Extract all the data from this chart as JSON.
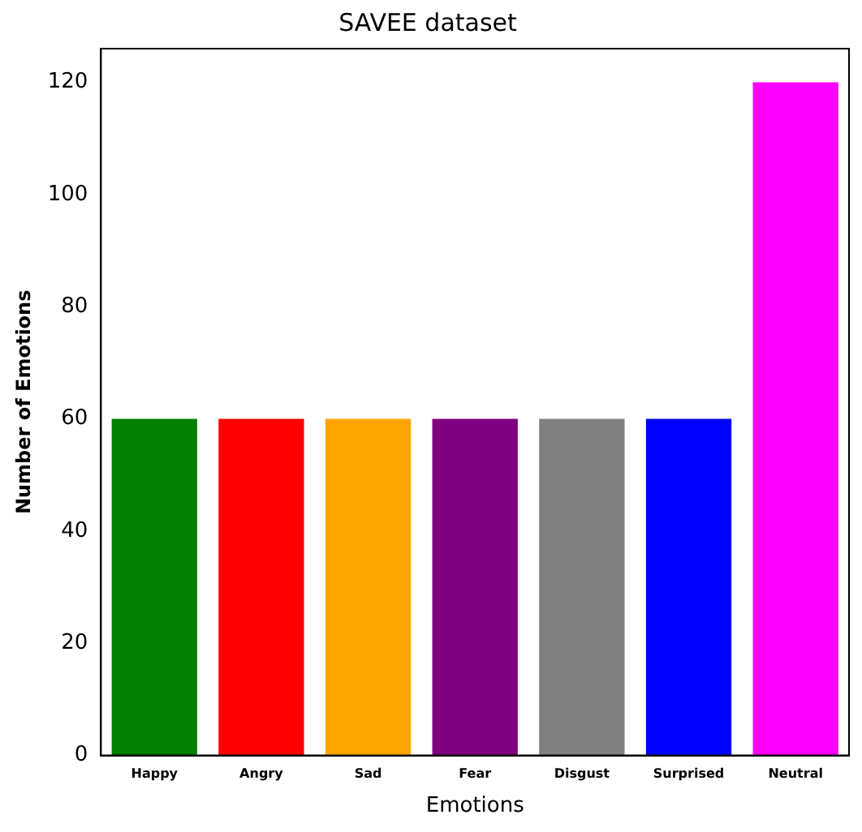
{
  "chart_data": {
    "type": "bar",
    "title": "SAVEE dataset",
    "xlabel": "Emotions",
    "ylabel": "Number of Emotions",
    "categories": [
      "Happy",
      "Angry",
      "Sad",
      "Fear",
      "Disgust",
      "Surprised",
      "Neutral"
    ],
    "values": [
      60,
      60,
      60,
      60,
      60,
      60,
      120
    ],
    "colors": [
      "#008000",
      "#ff0000",
      "#ffa500",
      "#800080",
      "#808080",
      "#0000ff",
      "#ff00ff"
    ],
    "ylim": [
      0,
      126
    ],
    "yticks": [
      0,
      20,
      40,
      60,
      80,
      100,
      120
    ],
    "grid": false,
    "legend": false
  }
}
